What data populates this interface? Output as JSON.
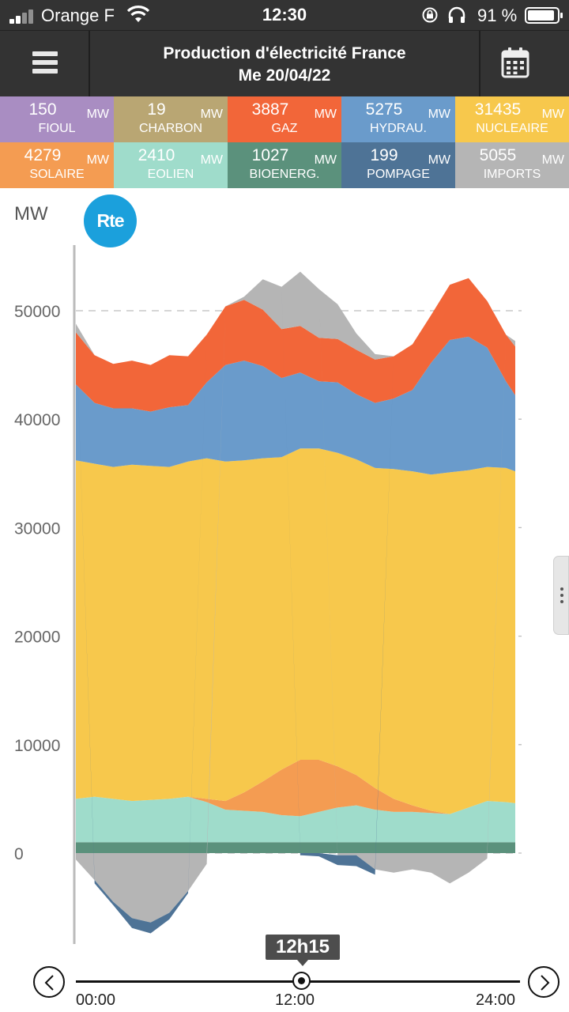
{
  "status_bar": {
    "carrier": "Orange F",
    "time": "12:30",
    "battery_pct": "91 %",
    "battery_level": 0.91
  },
  "header": {
    "title_line1": "Production d'électricité France",
    "title_line2": "Me 20/04/22"
  },
  "tiles": [
    {
      "value": "150",
      "unit": "MW",
      "label": "FIOUL",
      "color": "#a98dc2"
    },
    {
      "value": "19",
      "unit": "MW",
      "label": "CHARBON",
      "color": "#b9a673"
    },
    {
      "value": "3887",
      "unit": "MW",
      "label": "GAZ",
      "color": "#f26639"
    },
    {
      "value": "5275",
      "unit": "MW",
      "label": "HYDRAU.",
      "color": "#6a9bcb"
    },
    {
      "value": "31435",
      "unit": "MW",
      "label": "NUCLEAIRE",
      "color": "#f7c84c"
    },
    {
      "value": "4279",
      "unit": "MW",
      "label": "SOLAIRE",
      "color": "#f49c52"
    },
    {
      "value": "2410",
      "unit": "MW",
      "label": "EOLIEN",
      "color": "#9fdccb"
    },
    {
      "value": "1027",
      "unit": "MW",
      "label": "BIOENERG.",
      "color": "#5b917c"
    },
    {
      "value": "199",
      "unit": "MW",
      "label": "POMPAGE",
      "color": "#4e7396"
    },
    {
      "value": "5055",
      "unit": "MW",
      "label": "IMPORTS",
      "color": "#b5b5b5"
    }
  ],
  "chart_data": {
    "type": "area",
    "ylabel": "MW",
    "logo_text": "Rte",
    "y_ticks": [
      "50000",
      "40000",
      "30000",
      "20000",
      "10000",
      "0"
    ],
    "ylim": [
      -8000,
      55000
    ],
    "x_hours": [
      0,
      1,
      2,
      3,
      4,
      5,
      6,
      7,
      8,
      9,
      10,
      11,
      12,
      13,
      14,
      15,
      16,
      17,
      18,
      19,
      20,
      21,
      22,
      23,
      23.5
    ],
    "grid": true,
    "series": [
      {
        "name": "BIOENERG.",
        "color": "#5b917c",
        "values": [
          1000,
          1000,
          1000,
          1000,
          1000,
          1000,
          1000,
          1000,
          1000,
          1000,
          1000,
          1000,
          1000,
          1000,
          1000,
          1000,
          1000,
          1000,
          1000,
          1000,
          1000,
          1000,
          1000,
          1000,
          1000
        ]
      },
      {
        "name": "EOLIEN",
        "color": "#9fdccb",
        "values": [
          4000,
          4200,
          4000,
          3800,
          3900,
          4000,
          4200,
          3700,
          3000,
          2900,
          2800,
          2500,
          2400,
          2800,
          3200,
          3400,
          3000,
          2800,
          2800,
          2700,
          2600,
          3200,
          3800,
          3700,
          3600
        ]
      },
      {
        "name": "SOLAIRE",
        "color": "#f49c52",
        "values": [
          0,
          0,
          0,
          0,
          0,
          0,
          0,
          300,
          800,
          1700,
          2800,
          4200,
          5200,
          4800,
          3800,
          2800,
          2000,
          1200,
          600,
          200,
          0,
          0,
          0,
          0,
          0
        ]
      },
      {
        "name": "NUCLEAIRE",
        "color": "#f7c84c",
        "values": [
          31200,
          30700,
          30600,
          31000,
          30800,
          30600,
          30900,
          31400,
          31300,
          30600,
          29800,
          28800,
          28700,
          28700,
          28900,
          29100,
          29500,
          30400,
          30800,
          31000,
          31500,
          31100,
          30800,
          30800,
          30600
        ]
      },
      {
        "name": "HYDRAU.",
        "color": "#6a9bcb",
        "values": [
          7000,
          5600,
          5400,
          5200,
          5000,
          5500,
          5200,
          7000,
          8900,
          9200,
          8500,
          7300,
          7000,
          6200,
          6500,
          6000,
          6000,
          6500,
          7500,
          10300,
          12200,
          12300,
          11000,
          8000,
          7000
        ]
      },
      {
        "name": "GAZ",
        "color": "#f26639",
        "values": [
          4800,
          4400,
          4100,
          4400,
          4300,
          4800,
          4500,
          4400,
          5400,
          5600,
          5200,
          4500,
          4300,
          4000,
          4000,
          4100,
          4000,
          3900,
          4200,
          4400,
          5100,
          5400,
          4300,
          4300,
          4500
        ]
      },
      {
        "name": "IMPORTS",
        "color": "#b5b5b5",
        "values": [
          800,
          0,
          0,
          0,
          0,
          0,
          0,
          0,
          0,
          300,
          2800,
          3900,
          5000,
          4500,
          3200,
          1500,
          500,
          0,
          0,
          0,
          0,
          0,
          0,
          0,
          500
        ]
      },
      {
        "name": "EXPORTS",
        "color": "#b5b5b5",
        "values": [
          -600,
          -2500,
          -4500,
          -6000,
          -6400,
          -5500,
          -3500,
          -1000,
          0,
          0,
          0,
          0,
          0,
          0,
          -200,
          -200,
          -1500,
          -1800,
          -1500,
          -1800,
          -2800,
          -1800,
          -500,
          0,
          0
        ]
      },
      {
        "name": "POMPAGE",
        "color": "#4e7396",
        "values": [
          0,
          -300,
          -300,
          -900,
          -1000,
          -600,
          -200,
          0,
          0,
          0,
          0,
          0,
          -200,
          -300,
          -900,
          -1000,
          -500,
          0,
          0,
          0,
          0,
          0,
          0,
          0,
          0
        ]
      }
    ]
  },
  "timeline": {
    "current_label": "12h15",
    "start_label": "00:00",
    "mid_label": "12:00",
    "end_label": "24:00",
    "position": 0.51
  }
}
